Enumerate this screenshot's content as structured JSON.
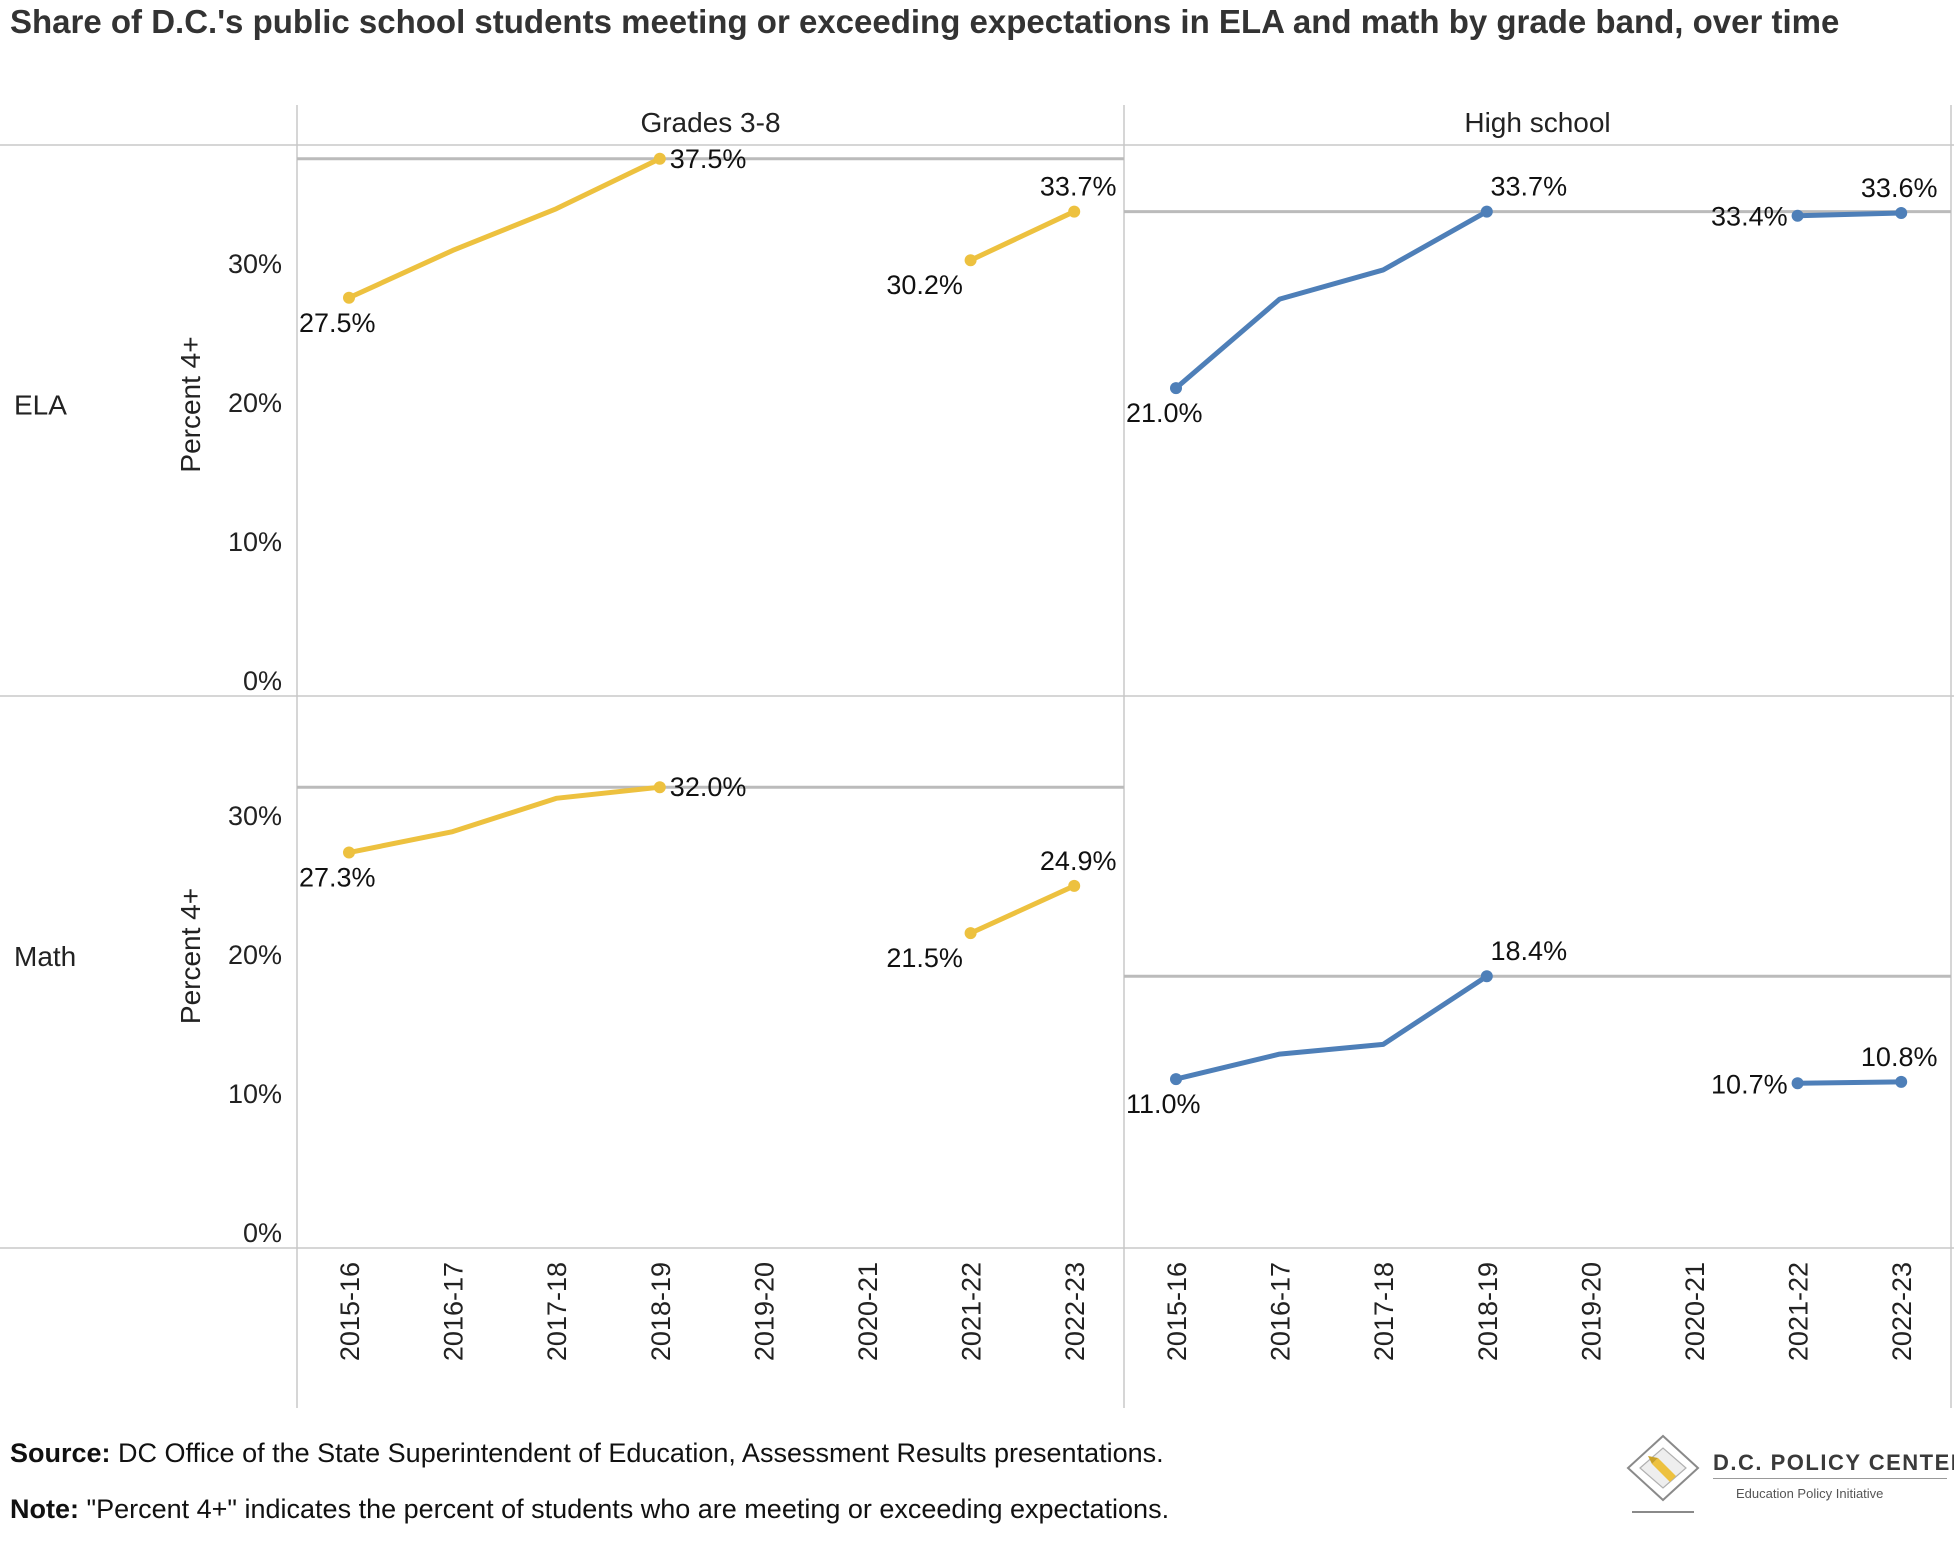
{
  "title": "Share of D.C.'s public school students meeting or exceeding expectations in ELA and math by grade band, over time",
  "footer": {
    "source_label": "Source:",
    "source_text": " DC Office of the State Superintendent of Education, Assessment Results presentations.",
    "note_label": "Note:",
    "note_text": " \"Percent 4+\" indicates the percent of students who are meeting or exceeding expectations."
  },
  "logo": {
    "name": "D.C. POLICY CENTER",
    "subtitle": "Education Policy Initiative",
    "icon": "dc-map-pencil-icon"
  },
  "colors": {
    "grades_3_8": "#EDC13F",
    "high_school": "#4E7FB8",
    "reference_line": "#BBBBBB",
    "grid": "#C8C8C8"
  },
  "chart_data": {
    "type": "line",
    "categories": [
      "2015-16",
      "2016-17",
      "2017-18",
      "2018-19",
      "2019-20",
      "2020-21",
      "2021-22",
      "2022-23"
    ],
    "columns": [
      "Grades 3-8",
      "High school"
    ],
    "rows": [
      "ELA",
      "Math"
    ],
    "ylabel": "Percent 4+",
    "ylim": [
      0,
      38
    ],
    "yticks": [
      0,
      10,
      20,
      30
    ],
    "ytick_labels": [
      "0%",
      "10%",
      "20%",
      "30%"
    ],
    "grid": false,
    "panels": [
      {
        "row": "ELA",
        "column": "Grades 3-8",
        "color_key": "grades_3_8",
        "values": [
          27.5,
          30.9,
          33.9,
          37.5,
          null,
          null,
          30.2,
          33.7
        ],
        "labels": [
          {
            "index": 0,
            "text": "27.5%"
          },
          {
            "index": 3,
            "text": "37.5%"
          },
          {
            "index": 6,
            "text": "30.2%"
          },
          {
            "index": 7,
            "text": "33.7%"
          }
        ],
        "reference_value": 37.5
      },
      {
        "row": "ELA",
        "column": "High school",
        "color_key": "high_school",
        "values": [
          21.0,
          27.4,
          29.5,
          33.7,
          null,
          null,
          33.4,
          33.6
        ],
        "labels": [
          {
            "index": 0,
            "text": "21.0%"
          },
          {
            "index": 3,
            "text": "33.7%"
          },
          {
            "index": 6,
            "text": "33.4%"
          },
          {
            "index": 7,
            "text": "33.6%"
          }
        ],
        "reference_value": 33.7
      },
      {
        "row": "Math",
        "column": "Grades 3-8",
        "color_key": "grades_3_8",
        "values": [
          27.3,
          28.8,
          31.2,
          32.0,
          null,
          null,
          21.5,
          24.9
        ],
        "labels": [
          {
            "index": 0,
            "text": "27.3%"
          },
          {
            "index": 3,
            "text": "32.0%"
          },
          {
            "index": 6,
            "text": "21.5%"
          },
          {
            "index": 7,
            "text": "24.9%"
          }
        ],
        "reference_value": 32.0
      },
      {
        "row": "Math",
        "column": "High school",
        "color_key": "high_school",
        "values": [
          11.0,
          12.8,
          13.5,
          18.4,
          null,
          null,
          10.7,
          10.8
        ],
        "labels": [
          {
            "index": 0,
            "text": "11.0%"
          },
          {
            "index": 3,
            "text": "18.4%"
          },
          {
            "index": 6,
            "text": "10.7%"
          },
          {
            "index": 7,
            "text": "10.8%"
          }
        ],
        "reference_value": 18.4
      }
    ]
  }
}
